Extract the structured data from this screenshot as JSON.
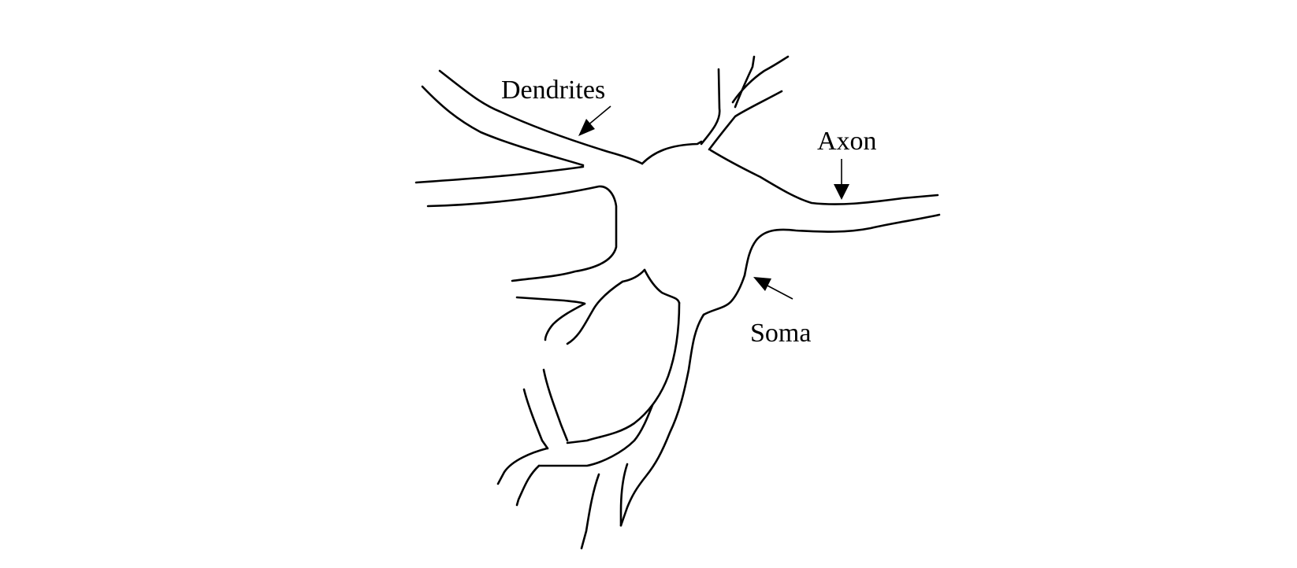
{
  "diagram": {
    "labels": {
      "dendrites": "Dendrites",
      "axon": "Axon",
      "soma": "Soma"
    },
    "colors": {
      "line": "#000000",
      "background": "#ffffff"
    }
  }
}
